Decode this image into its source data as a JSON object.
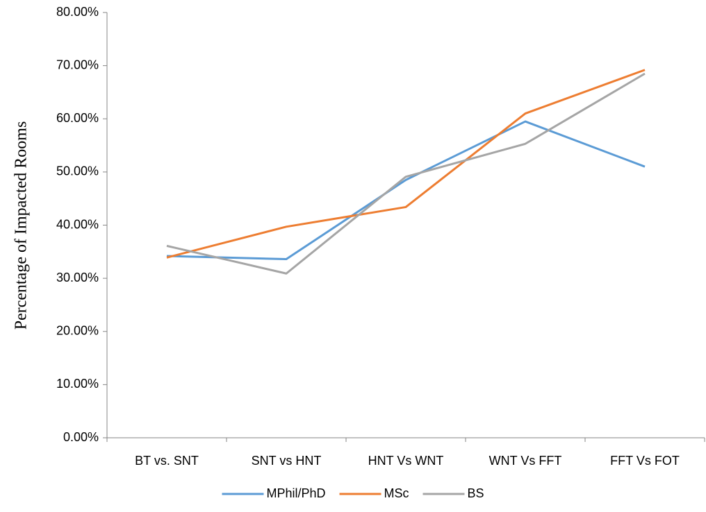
{
  "chart_data": {
    "type": "line",
    "y_label": "Percentage of Impacted Rooms",
    "categories": [
      "BT vs. SNT",
      "SNT vs HNT",
      "HNT Vs WNT",
      "WNT Vs FFT",
      "FFT Vs FOT"
    ],
    "series": [
      {
        "name": "MPhil/PhD",
        "color": "#5b9bd5",
        "values": [
          34.2,
          33.6,
          48.5,
          59.5,
          51.0
        ]
      },
      {
        "name": "MSc",
        "color": "#ed7d31",
        "values": [
          33.9,
          39.7,
          43.4,
          61.0,
          69.2
        ]
      },
      {
        "name": "BS",
        "color": "#a5a5a5",
        "values": [
          36.1,
          30.9,
          49.1,
          55.3,
          68.5
        ]
      }
    ],
    "ylim": [
      0,
      80
    ],
    "yticks": [
      {
        "value": 0,
        "label": "0.00%"
      },
      {
        "value": 10,
        "label": "10.00%"
      },
      {
        "value": 20,
        "label": "20.00%"
      },
      {
        "value": 30,
        "label": "30.00%"
      },
      {
        "value": 40,
        "label": "40.00%"
      },
      {
        "value": 50,
        "label": "50.00%"
      },
      {
        "value": 60,
        "label": "60.00%"
      },
      {
        "value": 70,
        "label": "70.00%"
      },
      {
        "value": 80,
        "label": "80.00%"
      }
    ],
    "legend": "bottom"
  }
}
